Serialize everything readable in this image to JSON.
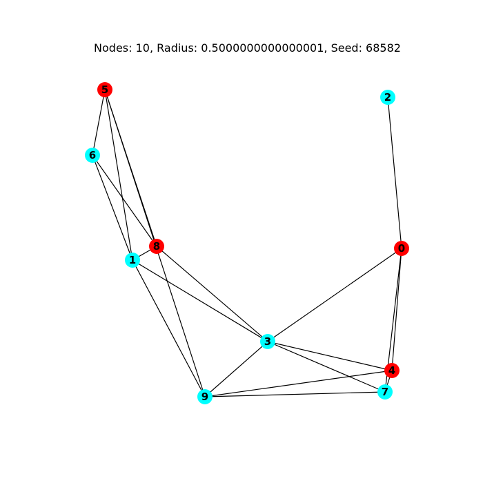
{
  "graph": {
    "title": "Nodes: 10, Radius: 0.5000000000000001, Seed: 68582",
    "colors": {
      "red": "#ff0000",
      "cyan": "#00ffff",
      "edge": "#000000"
    },
    "nodes": [
      {
        "id": "0",
        "label": "0",
        "color": "red"
      },
      {
        "id": "1",
        "label": "1",
        "color": "cyan"
      },
      {
        "id": "2",
        "label": "2",
        "color": "cyan"
      },
      {
        "id": "3",
        "label": "3",
        "color": "cyan"
      },
      {
        "id": "4",
        "label": "4",
        "color": "red"
      },
      {
        "id": "5",
        "label": "5",
        "color": "red"
      },
      {
        "id": "6",
        "label": "6",
        "color": "cyan"
      },
      {
        "id": "7",
        "label": "7",
        "color": "cyan"
      },
      {
        "id": "8",
        "label": "8",
        "color": "red"
      },
      {
        "id": "9",
        "label": "9",
        "color": "cyan"
      }
    ],
    "edges": [
      [
        "5",
        "6"
      ],
      [
        "5",
        "1"
      ],
      [
        "5",
        "8"
      ],
      [
        "5",
        "9"
      ],
      [
        "6",
        "1"
      ],
      [
        "6",
        "8"
      ],
      [
        "1",
        "8"
      ],
      [
        "1",
        "3"
      ],
      [
        "1",
        "9"
      ],
      [
        "8",
        "3"
      ],
      [
        "2",
        "0"
      ],
      [
        "0",
        "3"
      ],
      [
        "0",
        "4"
      ],
      [
        "0",
        "7"
      ],
      [
        "3",
        "9"
      ],
      [
        "3",
        "4"
      ],
      [
        "3",
        "7"
      ],
      [
        "9",
        "4"
      ],
      [
        "9",
        "7"
      ],
      [
        "4",
        "7"
      ]
    ]
  }
}
